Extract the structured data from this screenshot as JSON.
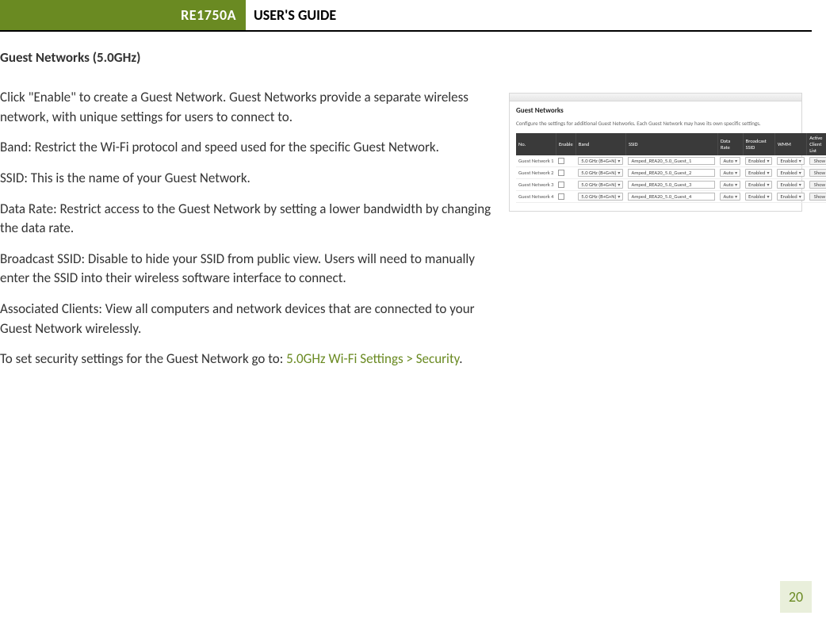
{
  "header": {
    "model": "RE1750A",
    "title": "USER'S GUIDE",
    "green": "#6a8a22",
    "text_color": "#ffffff"
  },
  "page_number": "20",
  "section_title": "Guest Networks (5.0GHz)",
  "paragraphs": {
    "p1": "Click \"Enable\" to create a Guest Network. Guest Networks provide a separate wireless network, with unique settings for users to connect to.",
    "p2": "Band: Restrict the Wi-Fi protocol and speed used for the specific Guest Network.",
    "p3": "SSID: This is the name of your Guest Network.",
    "p4": "Data Rate: Restrict access to the Guest Network by setting a lower bandwidth by changing the data rate.",
    "p5": "Broadcast SSID: Disable to hide your SSID from public view. Users will need to manually enter the SSID into their wireless software interface to connect.",
    "p6": "Associated Clients: View all computers and network devices that are connected to your Guest Network wirelessly.",
    "p7_prefix": "To set security settings for the Guest Network go to: ",
    "p7_link": "5.0GHz Wi-Fi Settings > Security",
    "p7_suffix": "."
  },
  "screenshot": {
    "panel_title": "Guest Networks",
    "panel_subtitle": "Configure the settings for additional Guest Networks. Each Guest Network may have its own specific settings.",
    "columns": [
      "No.",
      "Enable",
      "Band",
      "SSID",
      "Data Rate",
      "Broadcast SSID",
      "WMM",
      "Active Client List"
    ],
    "band_option": "5.0 GHz (B+G+N)",
    "data_rate_option": "Auto",
    "enabled_option": "Enabled",
    "show_button": "Show",
    "rows": [
      {
        "no": "Guest Network 1",
        "ssid": "Amped_REA20_5.0_Guest_1"
      },
      {
        "no": "Guest Network 2",
        "ssid": "Amped_REA20_5.0_Guest_2"
      },
      {
        "no": "Guest Network 3",
        "ssid": "Amped_REA20_5.0_Guest_3"
      },
      {
        "no": "Guest Network 4",
        "ssid": "Amped_REA20_5.0_Guest_4"
      }
    ],
    "colors": {
      "border": "#d7d7d7",
      "th_bg": "#3a3a3a",
      "th_fg": "#ffffff"
    }
  }
}
